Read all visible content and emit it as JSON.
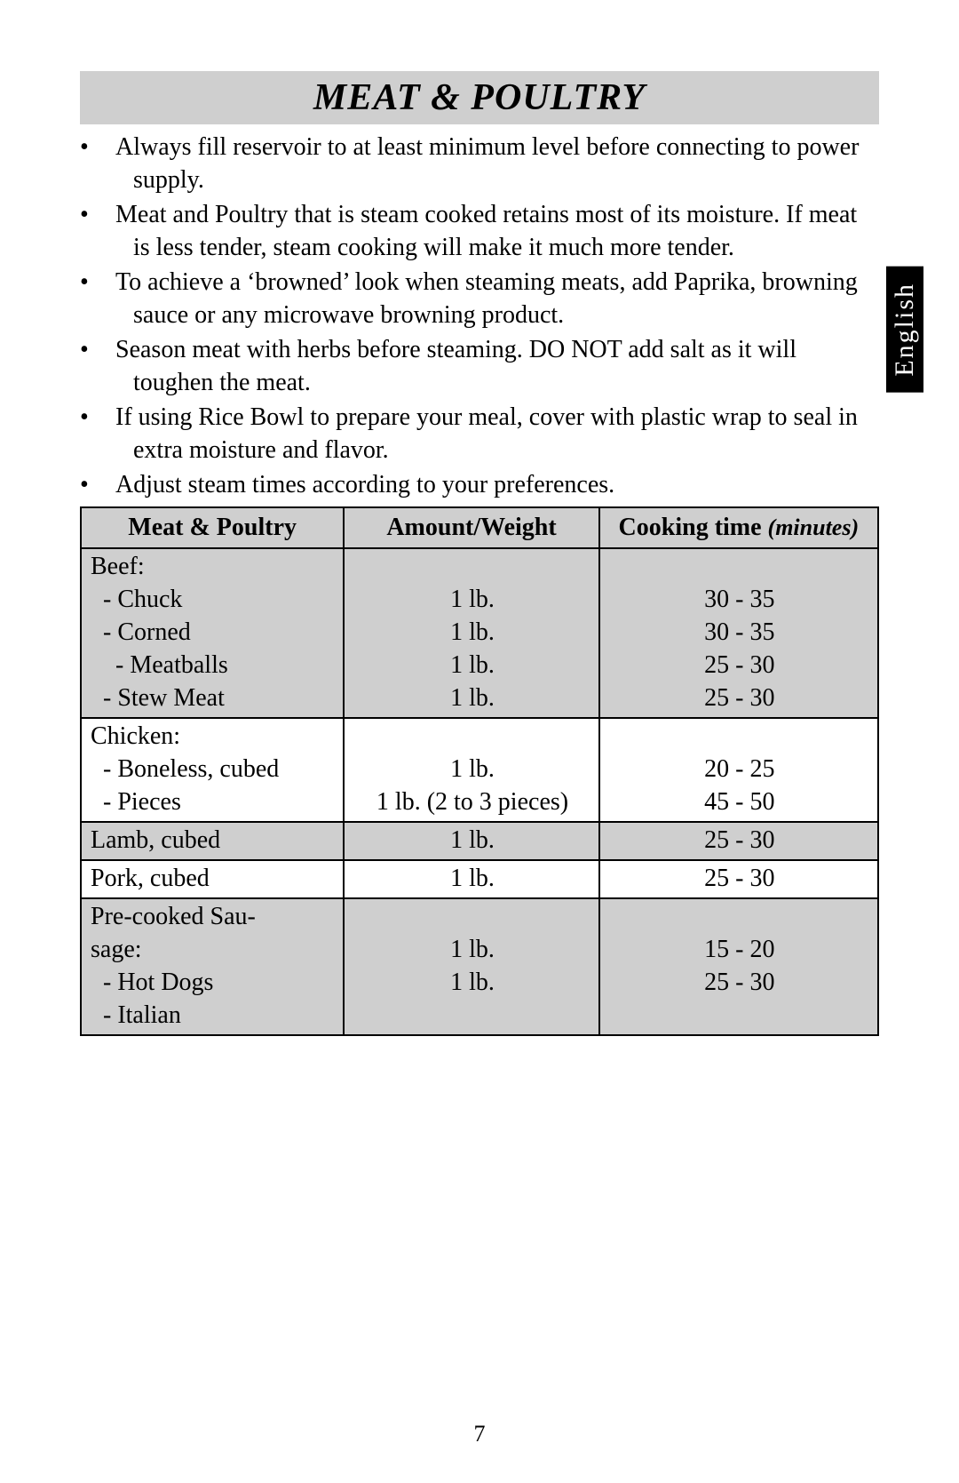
{
  "page_number": "7",
  "side_tab": "English",
  "title": "MEAT & POULTRY",
  "bullets": [
    "Always fill reservoir to at least minimum level before connecting to power supply.",
    "Meat and Poultry that is steam cooked retains most of its moisture. If meat is less tender, steam cooking will make it much more tender.",
    "To achieve a ‘browned’ look when steaming meats, add Paprika, browning sauce or any microwave browning product.",
    "Season meat with herbs before steaming. DO NOT add salt as it will toughen the meat.",
    "If using Rice Bowl to prepare your meal, cover with plastic wrap to seal in extra moisture and flavor.",
    "Adjust steam times according to your preferences."
  ],
  "table": {
    "headers": {
      "col1": "Meat & Poultry",
      "col2": "Amount/Weight",
      "col3_a": "Cooking time ",
      "col3_b": "(minutes)"
    },
    "beef": {
      "title": "Beef:",
      "items": [
        {
          "name": "- Chuck",
          "amt": "1 lb.",
          "time": "30 - 35"
        },
        {
          "name": "- Corned",
          "amt": "1 lb.",
          "time": "30 - 35"
        },
        {
          "name": "- Meatballs",
          "amt": "1 lb.",
          "time": "25 - 30"
        },
        {
          "name": "- Stew Meat",
          "amt": "1 lb.",
          "time": "25 - 30"
        }
      ]
    },
    "chicken": {
      "title": "Chicken:",
      "items": [
        {
          "name": "- Boneless, cubed",
          "amt": "1 lb.",
          "time": "20 - 25"
        },
        {
          "name": "- Pieces",
          "amt": "1 lb. (2 to 3 pieces)",
          "time": "45 - 50"
        }
      ]
    },
    "lamb": {
      "name": "Lamb, cubed",
      "amt": "1 lb.",
      "time": "25 - 30"
    },
    "pork": {
      "name": "Pork, cubed",
      "amt": "1 lb.",
      "time": "25 - 30"
    },
    "sausage": {
      "title_a": "Pre-cooked Sau-",
      "title_b": "sage:",
      "items": [
        {
          "name": "- Hot Dogs",
          "amt": "1 lb.",
          "time": "15 - 20"
        },
        {
          "name": "- Italian",
          "amt": "1 lb.",
          "time": "25 - 30"
        }
      ]
    }
  },
  "colors": {
    "header_bg": "#cfcfcf",
    "tab_bg": "#000000",
    "tab_fg": "#ffffff",
    "text": "#000000",
    "page_bg": "#ffffff"
  }
}
